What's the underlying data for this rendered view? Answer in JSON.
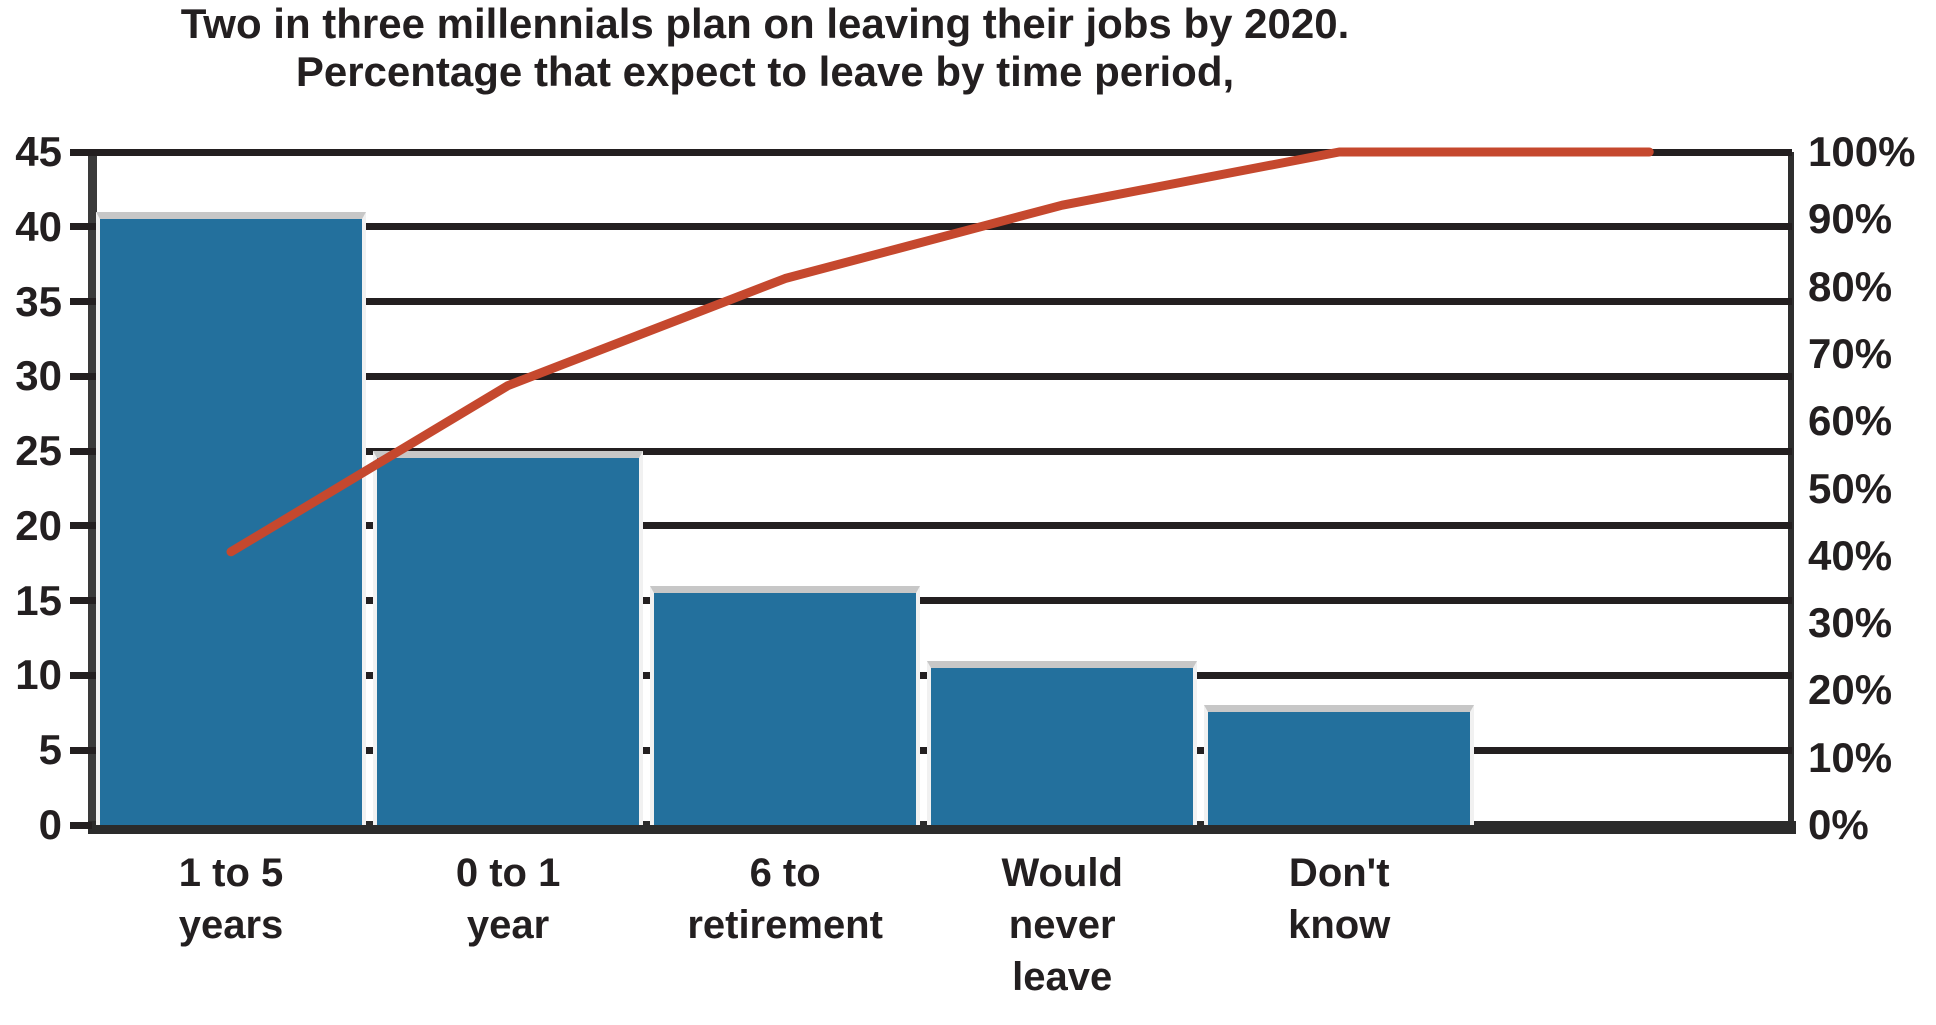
{
  "title": {
    "line1": "Two in three millennials plan on leaving their jobs by 2020.",
    "line2": "Percentage that expect to leave by time period,"
  },
  "chart_data": {
    "type": "bar",
    "subtype": "pareto",
    "title": "Two in three millennials plan on leaving their jobs by 2020. Percentage that expect to leave by time period,",
    "categories": [
      "1 to 5 years",
      "0 to 1 year",
      "6 to retirement",
      "Would never leave",
      "Don't know"
    ],
    "category_label_lines": [
      [
        "1 to 5",
        "years"
      ],
      [
        "0 to 1",
        "year"
      ],
      [
        "6 to",
        "retirement"
      ],
      [
        "Would",
        "never",
        "leave"
      ],
      [
        "Don't",
        "know"
      ]
    ],
    "series": [
      {
        "name": "share-expecting-to-leave",
        "type": "bar",
        "axis": "left",
        "values": [
          41,
          25,
          16,
          11,
          8
        ],
        "color": "#23709d"
      },
      {
        "name": "cumulative-percentage",
        "type": "line",
        "axis": "right",
        "values": [
          40.6,
          65.3,
          81.2,
          92.1,
          100
        ],
        "color": "#c5482e"
      }
    ],
    "left_axis": {
      "min": 0,
      "max": 45,
      "tick_step": 5,
      "tick_labels": [
        "45",
        "40",
        "35",
        "30",
        "25",
        "20",
        "15",
        "10",
        "5",
        "0"
      ]
    },
    "right_axis": {
      "min": 0,
      "max": 100,
      "tick_step": 10,
      "tick_labels": [
        "100%",
        "90%",
        "80%",
        "70%",
        "60%",
        "50%",
        "40%",
        "30%",
        "20%",
        "10%",
        "0%"
      ]
    },
    "grid": "horizontal gridlines at every 5 units of left axis",
    "legend": "none"
  },
  "colors": {
    "bar": "#23709d",
    "bar_cap": "#c7c7c7",
    "line": "#c5482e",
    "grid": "#231f20",
    "text": "#231f20",
    "background": "#ffffff"
  }
}
